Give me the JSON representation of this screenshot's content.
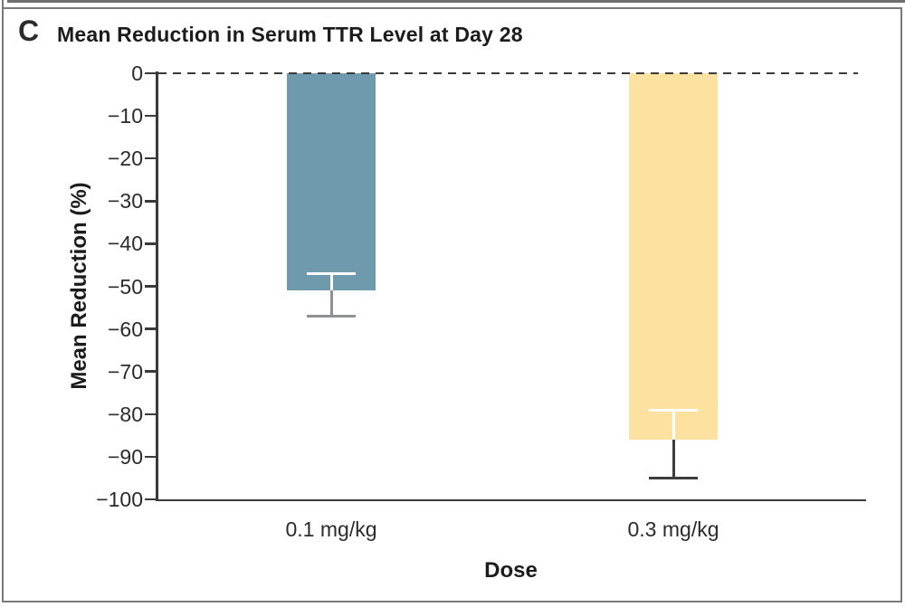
{
  "panel": {
    "label": "C",
    "title": "Mean Reduction in Serum TTR Level at Day 28",
    "border_color": "#7a7a7a"
  },
  "chart_data": {
    "type": "bar",
    "title": "Mean Reduction in Serum TTR Level at Day 28",
    "panel_label": "C",
    "categories": [
      "0.1 mg/kg",
      "0.3 mg/kg"
    ],
    "values": [
      -51,
      -86
    ],
    "error_bars": [
      {
        "upper": -47,
        "lower": -57
      },
      {
        "upper": -79,
        "lower": -95
      }
    ],
    "bar_colors": [
      "#6f99ad",
      "#fde1a0"
    ],
    "error_bar_inner_color": "#ffffff",
    "error_bar_outer_colors": [
      "#8f9193",
      "#3d3d3d"
    ],
    "xlabel": "Dose",
    "ylabel": "Mean Reduction (%)",
    "ylim": [
      -100,
      0
    ],
    "ytick_step": 10,
    "ytick_labels": [
      "0",
      "−10",
      "−20",
      "−30",
      "−40",
      "−50",
      "−60",
      "−70",
      "−80",
      "−90",
      "−100"
    ],
    "zero_line_style": "dashed",
    "axis_color": "#3a3a3a",
    "grid": false,
    "legend": false
  }
}
